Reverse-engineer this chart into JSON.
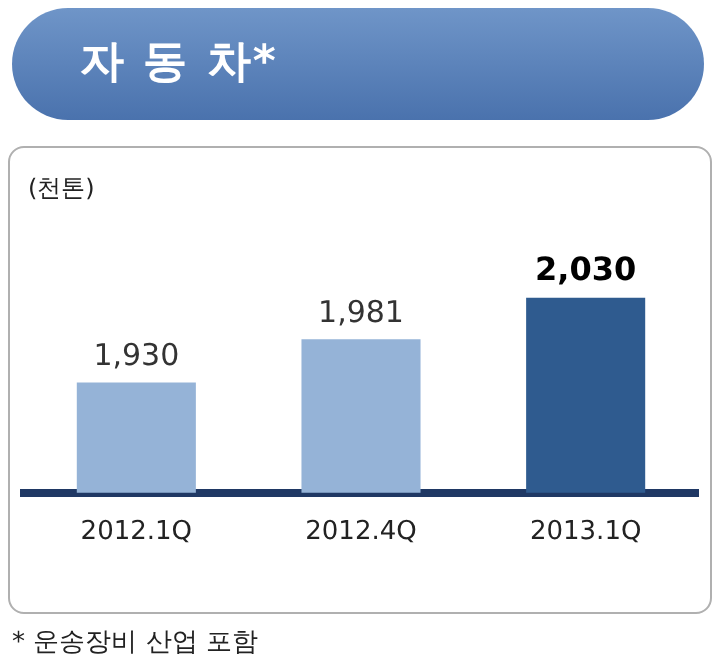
{
  "chart_data": {
    "type": "bar",
    "title": "자 동 차*",
    "ylabel": "(천톤)",
    "categories": [
      "2012.1Q",
      "2012.4Q",
      "2013.1Q"
    ],
    "values": [
      1930,
      1981,
      2030
    ],
    "colors": [
      "#95b3d7",
      "#95b3d7",
      "#2f5b8f"
    ],
    "value_labels": [
      "1,930",
      "1,981",
      "2,030"
    ],
    "tick_labels": "x",
    "grid": false,
    "legend": false,
    "annotations": [
      "* 운송장비 산업 포함"
    ]
  }
}
